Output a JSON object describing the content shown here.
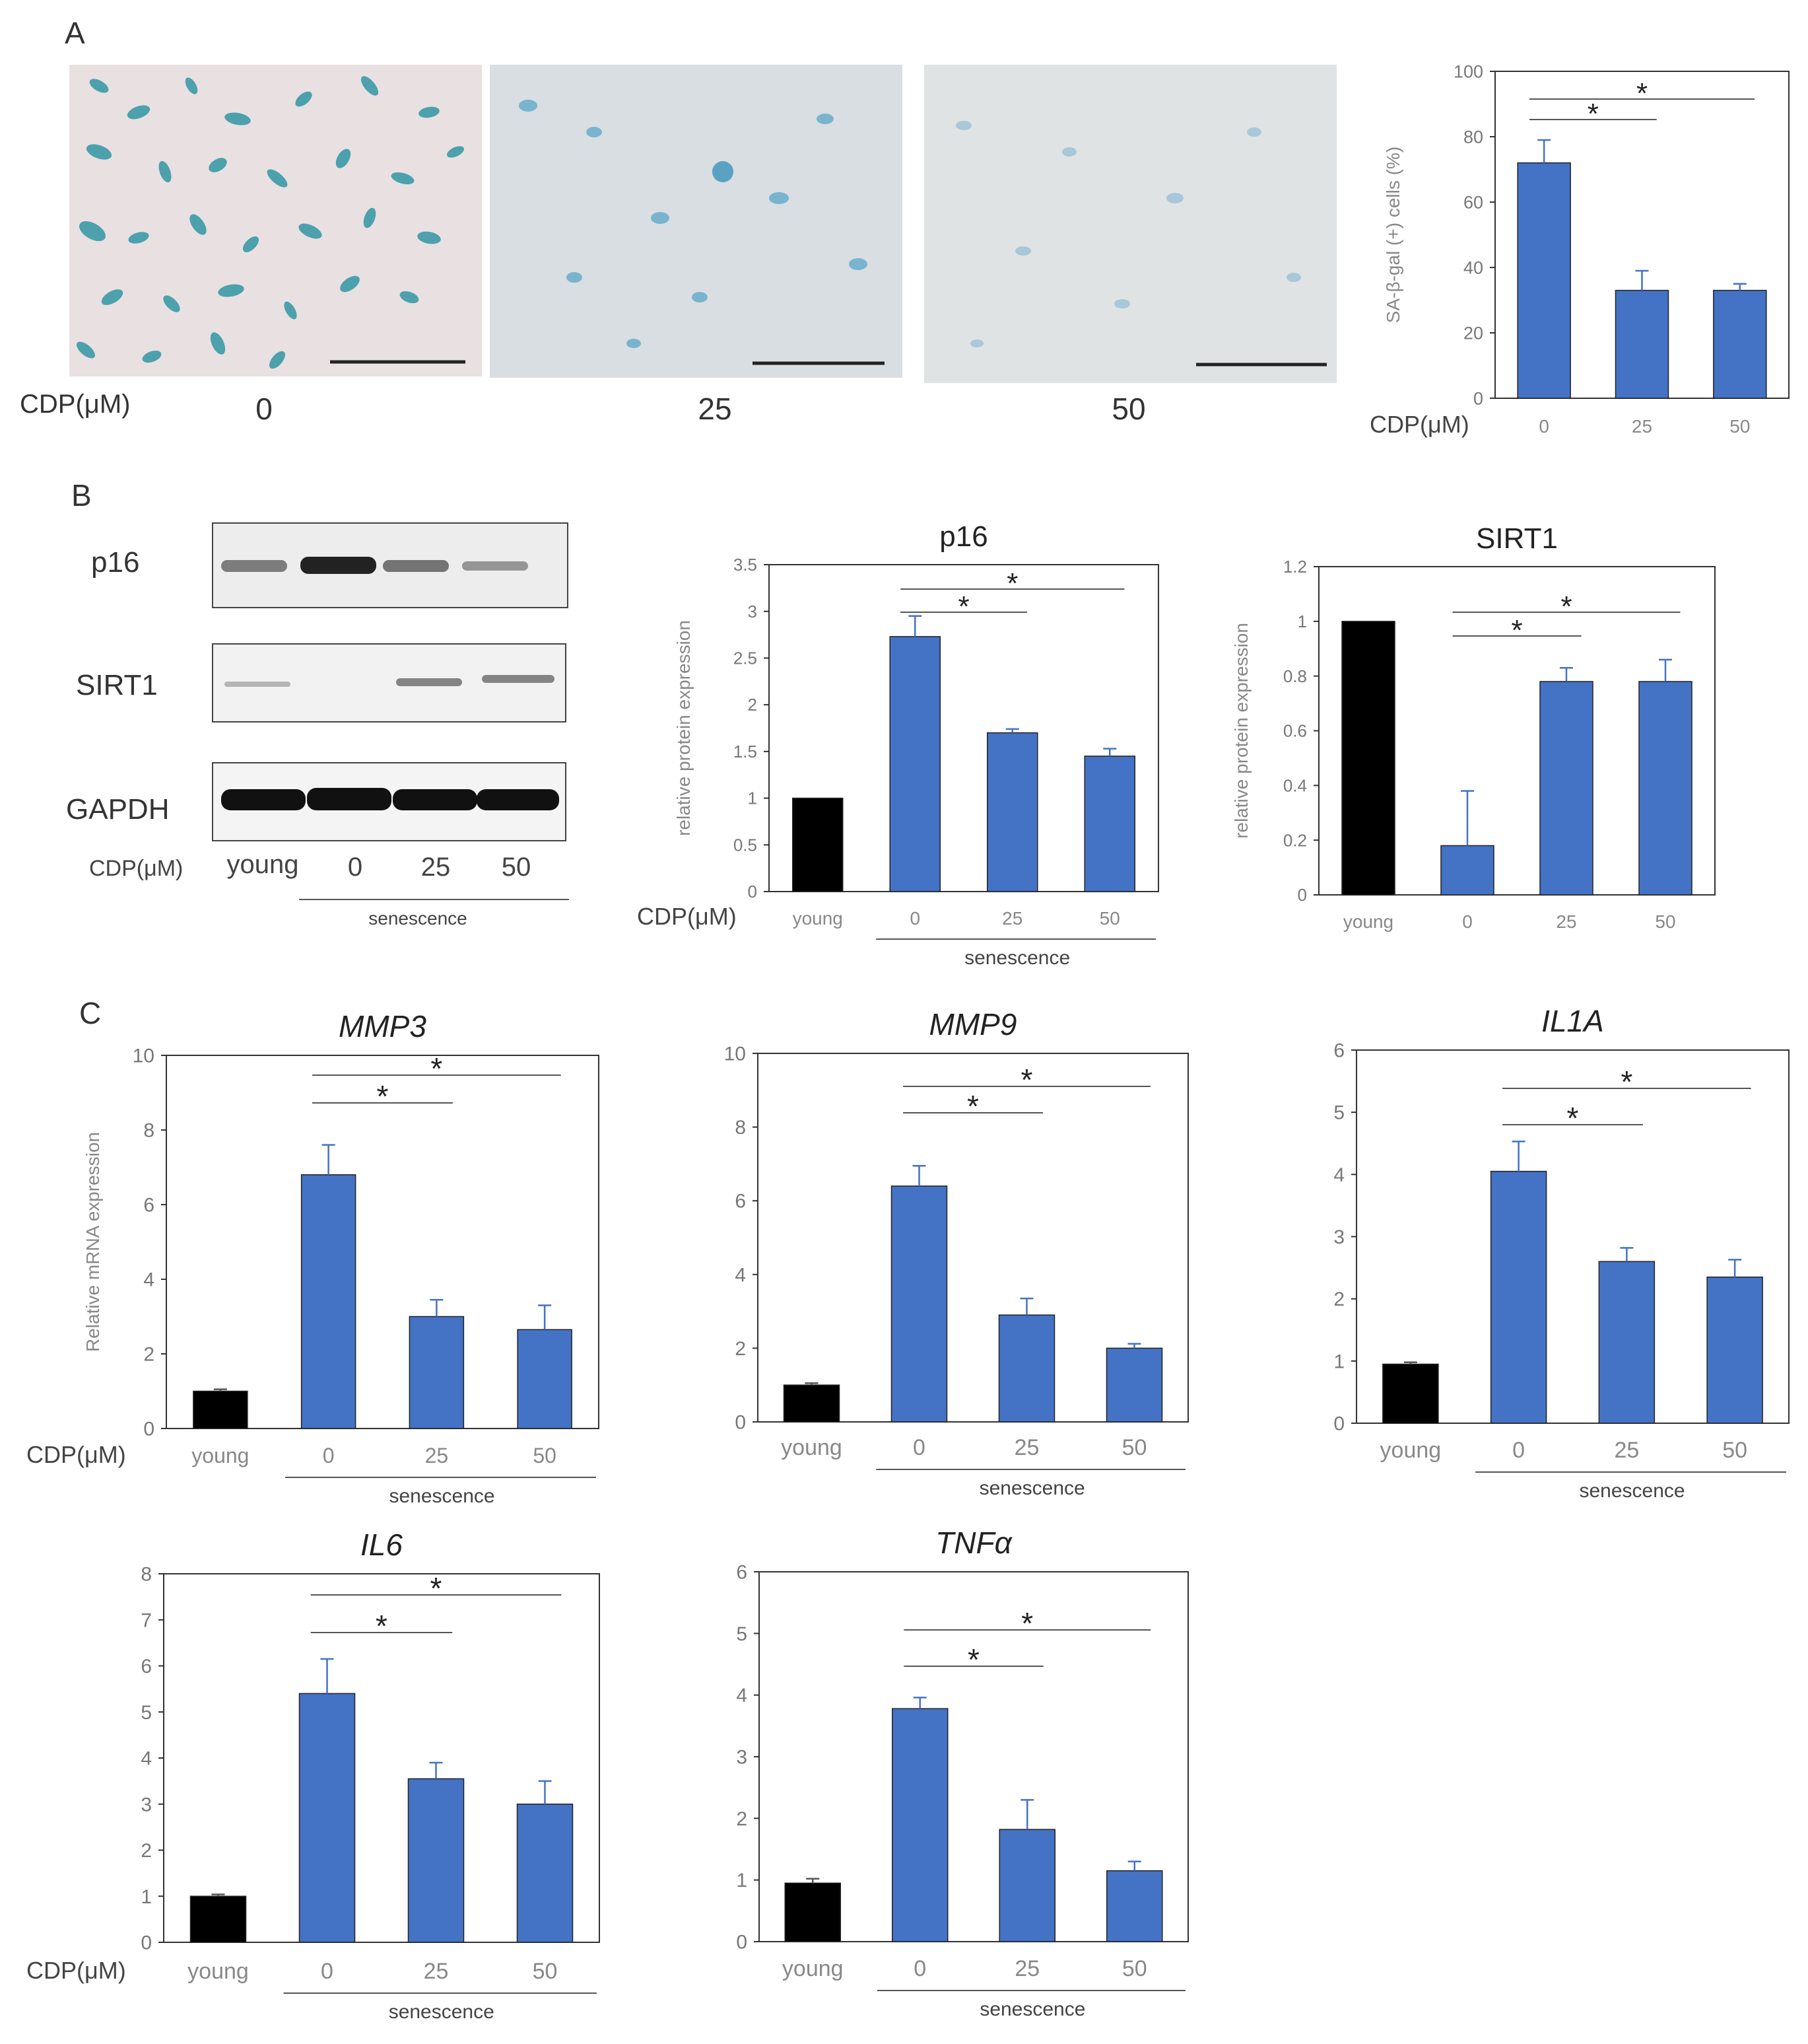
{
  "panel_labels": [
    "A",
    "B",
    "C"
  ],
  "panel_a": {
    "images": [
      {
        "label": "0",
        "description": "SA-β-gal stained senescent cells, untreated"
      },
      {
        "label": "25",
        "description": "SA-β-gal stained cells, 25 μM CDP"
      },
      {
        "label": "50",
        "description": "SA-β-gal stained cells, 50 μM CDP"
      }
    ],
    "axis_title": "CDP(μM)",
    "colors": {
      "cell_stain": "#3f9fb0",
      "background_0": "#e8dfe1",
      "background_25": "#d9dfe2",
      "background_50": "#dfe3e4"
    }
  },
  "panel_b": {
    "blot_labels": [
      "p16",
      "SIRT1",
      "GAPDH"
    ],
    "lane_axis_title": "CDP(μM)",
    "lanes": [
      "young",
      "0",
      "25",
      "50"
    ],
    "group_label": "senescence"
  },
  "colors": {
    "young": "#000000",
    "treated": "#4472c4",
    "error_bar": "#4472c4",
    "axis": "#333333",
    "tick_text": "#888888"
  },
  "chart_data": [
    {
      "id": "sagal",
      "type": "bar",
      "title": "",
      "xlabel": "CDP(μM)",
      "ylabel": "SA-β-gal (+) cells (%)",
      "categories": [
        "0",
        "25",
        "50"
      ],
      "values": [
        72,
        33,
        33
      ],
      "errors": [
        7,
        6,
        2
      ],
      "ylim": [
        0,
        100
      ],
      "yticks": [
        "0",
        "20",
        "40",
        "60",
        "80",
        "100"
      ],
      "group_label": "",
      "sig": [
        {
          "from": 0,
          "to": 1,
          "label": "*"
        },
        {
          "from": 0,
          "to": 2,
          "label": "*"
        }
      ]
    },
    {
      "id": "p16",
      "type": "bar",
      "title": "p16",
      "xlabel": "CDP(μM)",
      "ylabel": "relative protein expression",
      "categories": [
        "young",
        "0",
        "25",
        "50"
      ],
      "values": [
        1,
        2.73,
        1.7,
        1.45
      ],
      "errors": [
        0,
        0.22,
        0.04,
        0.08
      ],
      "ylim": [
        0,
        3.5
      ],
      "yticks": [
        "0",
        "0.5",
        "1",
        "1.5",
        "2",
        "2.5",
        "3",
        "3.5"
      ],
      "group_label": "senescence",
      "sig": [
        {
          "from": 1,
          "to": 2,
          "label": "*"
        },
        {
          "from": 1,
          "to": 3,
          "label": "*"
        }
      ]
    },
    {
      "id": "sirt1",
      "type": "bar",
      "title": "SIRT1",
      "xlabel": "",
      "ylabel": "relative protein expression",
      "categories": [
        "young",
        "0",
        "25",
        "50"
      ],
      "values": [
        1,
        0.18,
        0.78,
        0.78
      ],
      "errors": [
        0,
        0.2,
        0.05,
        0.08
      ],
      "ylim": [
        0,
        1.2
      ],
      "yticks": [
        "0",
        "0.2",
        "0.4",
        "0.6",
        "0.8",
        "1",
        "1.2"
      ],
      "group_label": "",
      "sig": [
        {
          "from": 1,
          "to": 2,
          "label": "*"
        },
        {
          "from": 1,
          "to": 3,
          "label": "*"
        }
      ]
    },
    {
      "id": "mmp3",
      "type": "bar",
      "title": "MMP3",
      "xlabel": "CDP(μM)",
      "ylabel": "Relative mRNA expression",
      "categories": [
        "young",
        "0",
        "25",
        "50"
      ],
      "values": [
        1,
        6.8,
        3.0,
        2.65
      ],
      "errors": [
        0.05,
        0.8,
        0.45,
        0.65
      ],
      "ylim": [
        0,
        10
      ],
      "yticks": [
        "0",
        "2",
        "4",
        "6",
        "8",
        "10"
      ],
      "group_label": "senescence",
      "sig": [
        {
          "from": 1,
          "to": 2,
          "label": "*"
        },
        {
          "from": 1,
          "to": 3,
          "label": "*"
        }
      ]
    },
    {
      "id": "mmp9",
      "type": "bar",
      "title": "MMP9",
      "xlabel": "",
      "ylabel": "",
      "categories": [
        "young",
        "0",
        "25",
        "50"
      ],
      "values": [
        1,
        6.4,
        2.9,
        2.0
      ],
      "errors": [
        0.05,
        0.55,
        0.45,
        0.12
      ],
      "ylim": [
        0,
        10
      ],
      "yticks": [
        "0",
        "2",
        "4",
        "6",
        "8",
        "10"
      ],
      "group_label": "senescence",
      "sig": [
        {
          "from": 1,
          "to": 2,
          "label": "*"
        },
        {
          "from": 1,
          "to": 3,
          "label": "*"
        }
      ]
    },
    {
      "id": "il1a",
      "type": "bar",
      "title": "IL1A",
      "xlabel": "",
      "ylabel": "",
      "categories": [
        "young",
        "0",
        "25",
        "50"
      ],
      "values": [
        0.95,
        4.05,
        2.6,
        2.35
      ],
      "errors": [
        0.03,
        0.48,
        0.22,
        0.28
      ],
      "ylim": [
        0,
        6
      ],
      "yticks": [
        "0",
        "1",
        "2",
        "3",
        "4",
        "5",
        "6"
      ],
      "group_label": "senescence",
      "sig": [
        {
          "from": 1,
          "to": 2,
          "label": "*"
        },
        {
          "from": 1,
          "to": 3,
          "label": "*"
        }
      ]
    },
    {
      "id": "il6",
      "type": "bar",
      "title": "IL6",
      "xlabel": "CDP(μM)",
      "ylabel": "",
      "categories": [
        "young",
        "0",
        "25",
        "50"
      ],
      "values": [
        1,
        5.4,
        3.55,
        3.0
      ],
      "errors": [
        0.04,
        0.75,
        0.35,
        0.5
      ],
      "ylim": [
        0,
        8
      ],
      "yticks": [
        "0",
        "1",
        "2",
        "3",
        "4",
        "5",
        "6",
        "7",
        "8"
      ],
      "group_label": "senescence",
      "sig": [
        {
          "from": 1,
          "to": 2,
          "label": "*"
        },
        {
          "from": 1,
          "to": 3,
          "label": "*"
        }
      ]
    },
    {
      "id": "tnfa",
      "type": "bar",
      "title": "TNFα",
      "xlabel": "",
      "ylabel": "",
      "categories": [
        "young",
        "0",
        "25",
        "50"
      ],
      "values": [
        0.95,
        3.78,
        1.82,
        1.15
      ],
      "errors": [
        0.07,
        0.18,
        0.48,
        0.15
      ],
      "ylim": [
        0,
        6
      ],
      "yticks": [
        "0",
        "1",
        "2",
        "3",
        "4",
        "5",
        "6"
      ],
      "group_label": "senescence",
      "sig": [
        {
          "from": 1,
          "to": 2,
          "label": "*"
        },
        {
          "from": 1,
          "to": 3,
          "label": "*"
        }
      ]
    }
  ]
}
